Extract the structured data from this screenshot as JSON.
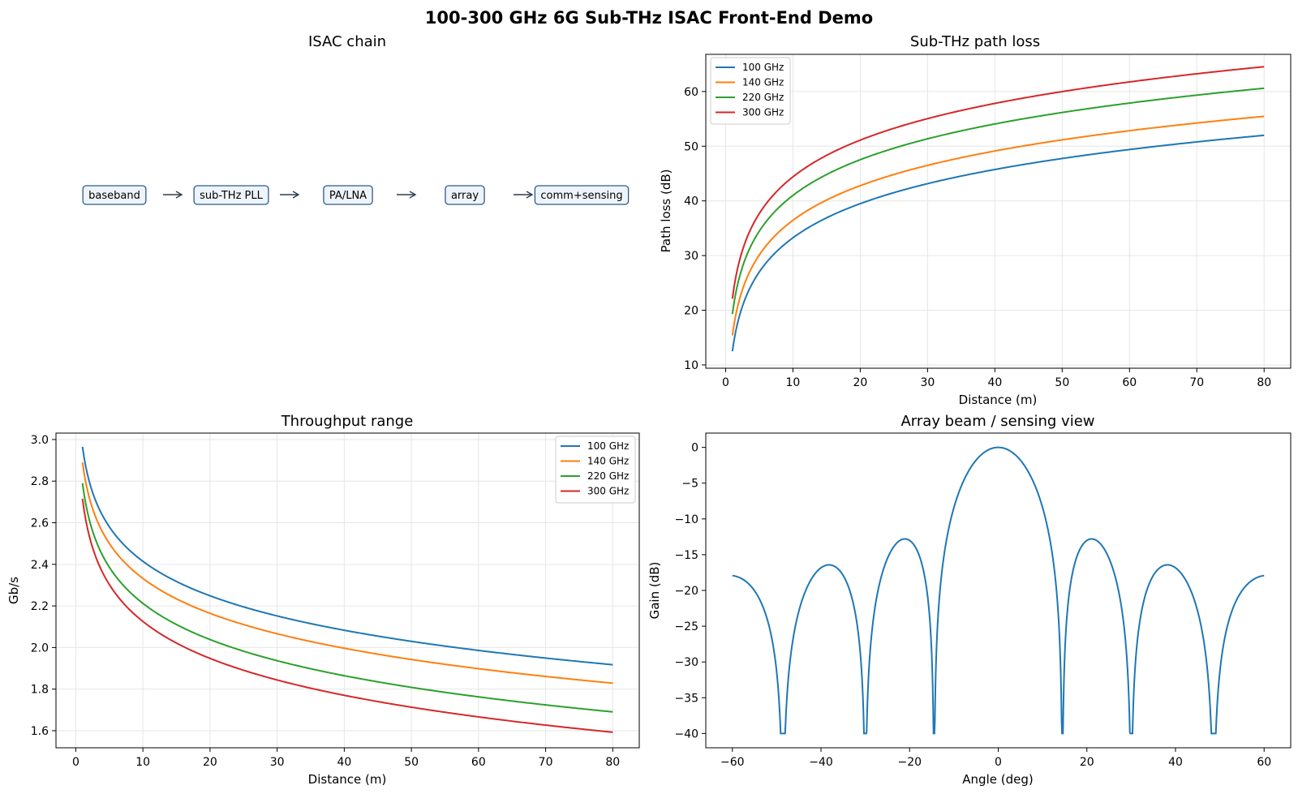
{
  "suptitle": "100-300 GHz 6G Sub-THz ISAC Front-End Demo",
  "chain": {
    "title": "ISAC chain",
    "nodes": [
      "baseband",
      "sub-THz PLL",
      "PA/LNA",
      "array",
      "comm+sensing"
    ],
    "arrow": "→"
  },
  "colors": {
    "100 GHz": "#1f77b4",
    "140 GHz": "#ff7f0e",
    "220 GHz": "#2ca02c",
    "300 GHz": "#d62728",
    "beam": "#1f77b4",
    "node_border": "#2b5a8c",
    "node_fill": "#eef4fb",
    "arrow": "#2c3e50"
  },
  "chart_data": [
    {
      "id": "pathloss",
      "type": "line",
      "title": "Sub-THz path loss",
      "xlabel": "Distance (m)",
      "ylabel": "Path loss (dB)",
      "xlim": [
        -2.95,
        83.95
      ],
      "ylim": [
        9.4,
        66.8
      ],
      "xticks": [
        0,
        10,
        20,
        30,
        40,
        50,
        60,
        70,
        80
      ],
      "yticks": [
        10,
        20,
        30,
        40,
        50,
        60
      ],
      "grid": true,
      "legend": "top-left",
      "x_range": [
        1,
        80
      ],
      "model": "value(d) = a + b * log10(d)",
      "series": [
        {
          "name": "100 GHz",
          "a": 12.5,
          "b": 20.75
        },
        {
          "name": "140 GHz",
          "a": 15.4,
          "b": 21.05
        },
        {
          "name": "220 GHz",
          "a": 19.3,
          "b": 21.7
        },
        {
          "name": "300 GHz",
          "a": 22.1,
          "b": 22.3
        }
      ]
    },
    {
      "id": "throughput",
      "type": "line",
      "title": "Throughput range",
      "xlabel": "Distance (m)",
      "ylabel": "Gb/s",
      "xlim": [
        -2.95,
        83.95
      ],
      "ylim": [
        1.518,
        3.031
      ],
      "xticks": [
        0,
        10,
        20,
        30,
        40,
        50,
        60,
        70,
        80
      ],
      "yticks": [
        "1.6",
        "1.8",
        "2.0",
        "2.2",
        "2.4",
        "2.6",
        "2.8",
        "3.0"
      ],
      "grid": true,
      "legend": "top-right",
      "x_range": [
        1,
        80
      ],
      "model": "value(d) = a + b * log10(d)",
      "series": [
        {
          "name": "100 GHz",
          "a": 2.965,
          "b": -0.5505
        },
        {
          "name": "140 GHz",
          "a": 2.89,
          "b": -0.5577
        },
        {
          "name": "220 GHz",
          "a": 2.79,
          "b": -0.5777
        },
        {
          "name": "300 GHz",
          "a": 2.715,
          "b": -0.5897
        }
      ]
    },
    {
      "id": "beam",
      "type": "line",
      "title": "Array beam / sensing view",
      "xlabel": "Angle (deg)",
      "ylabel": "Gain (dB)",
      "xlim": [
        -66,
        66
      ],
      "ylim": [
        -42.0,
        2.0
      ],
      "xticks": [
        -60,
        -40,
        -20,
        0,
        20,
        40,
        60
      ],
      "yticks": [
        0,
        -5,
        -10,
        -15,
        -20,
        -25,
        -30,
        -35,
        -40
      ],
      "grid": false,
      "x_range": [
        -60,
        60
      ],
      "floor_db": -40,
      "array_elements": 8,
      "element_spacing_wavelengths": 0.5
    }
  ]
}
